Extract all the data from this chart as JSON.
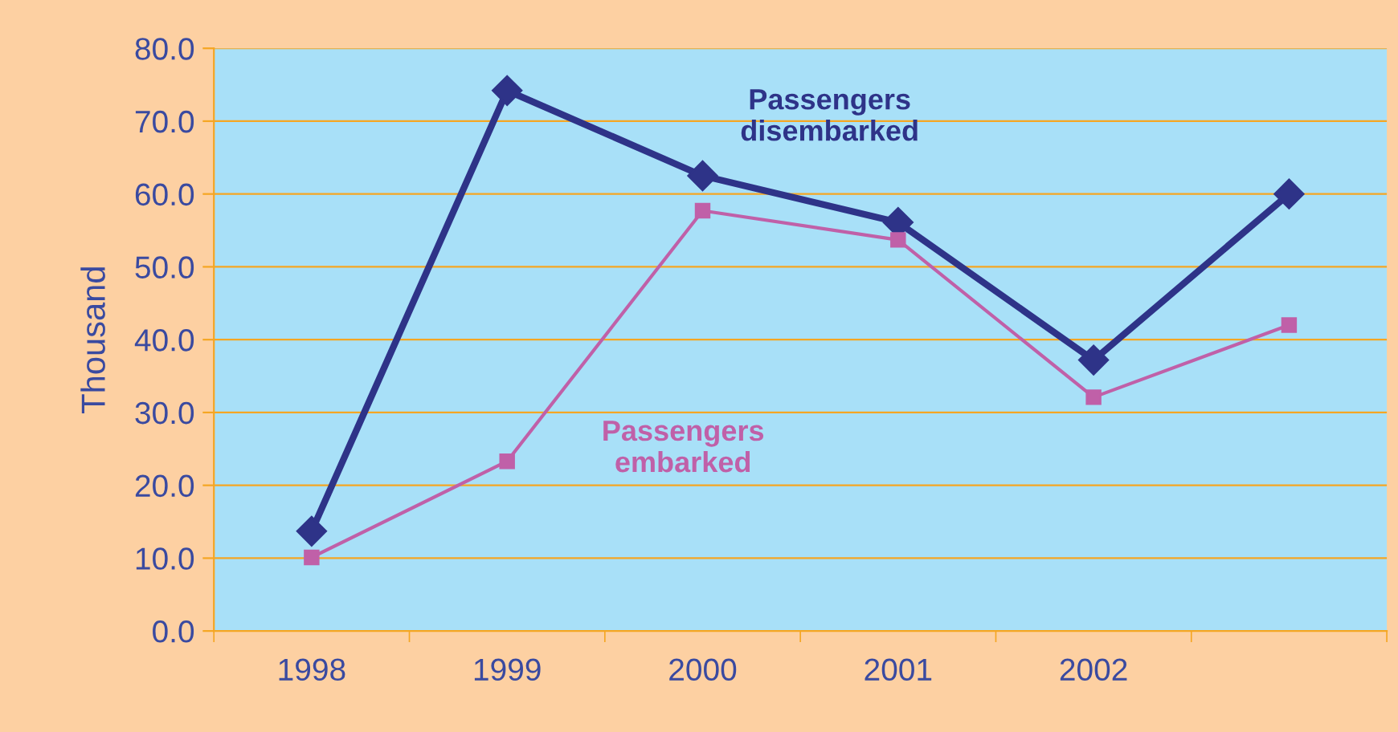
{
  "chart_data": {
    "type": "line",
    "ylabel": "Thousand",
    "categories": [
      "1998",
      "1999",
      "2000",
      "2001",
      "2002",
      null
    ],
    "series": [
      {
        "name": "Passengers disembarked",
        "color": "#2e3388",
        "marker": "diamond",
        "values": [
          13.7,
          74.2,
          62.5,
          56.1,
          37.2,
          60.0
        ]
      },
      {
        "name": "Passengers embarked",
        "color": "#c060a8",
        "marker": "square",
        "values": [
          10.1,
          23.3,
          57.7,
          53.7,
          32.1,
          42.0
        ]
      }
    ],
    "ylim": [
      0,
      80
    ],
    "yticks": [
      {
        "value": 0,
        "label": "0.0"
      },
      {
        "value": 10,
        "label": "10.0"
      },
      {
        "value": 20,
        "label": "20.0"
      },
      {
        "value": 30,
        "label": "30.0"
      },
      {
        "value": 40,
        "label": "40.0"
      },
      {
        "value": 50,
        "label": "50.0"
      },
      {
        "value": 60,
        "label": "60.0"
      },
      {
        "value": 70,
        "label": "70.0"
      },
      {
        "value": 80,
        "label": "80.0"
      }
    ],
    "grid": "y",
    "line_style": "solid"
  }
}
